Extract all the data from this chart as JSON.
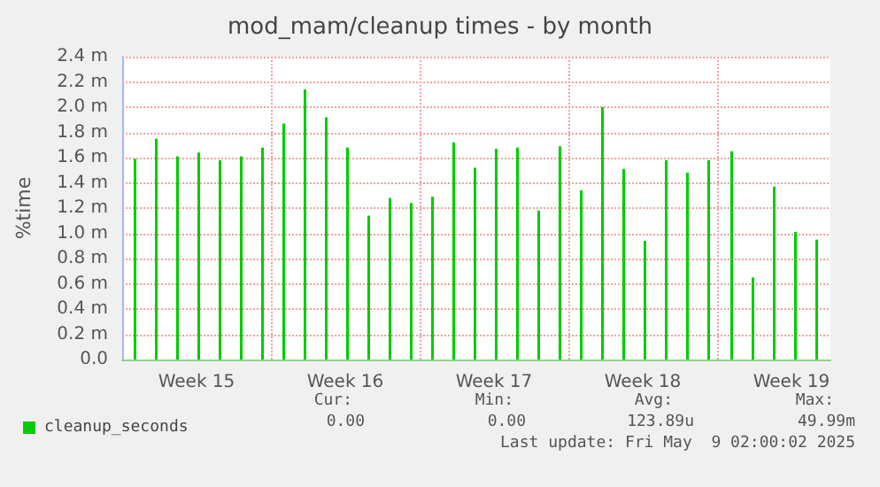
{
  "chart_data": {
    "type": "bar",
    "title": "mod_mam/cleanup times - by month",
    "ylabel": "%time",
    "x": [
      "2025-04-07T14:30",
      "2025-04-08T14:30",
      "2025-04-09T14:30",
      "2025-04-10T14:30",
      "2025-04-11T14:30",
      "2025-04-12T14:30",
      "2025-04-13T14:30",
      "2025-04-14T14:30",
      "2025-04-15T14:30",
      "2025-04-16T14:30",
      "2025-04-17T14:30",
      "2025-04-18T14:30",
      "2025-04-19T14:30",
      "2025-04-20T14:30",
      "2025-04-21T14:30",
      "2025-04-22T14:30",
      "2025-04-23T14:30",
      "2025-04-24T14:30",
      "2025-04-25T14:30",
      "2025-04-26T14:30",
      "2025-04-27T14:30",
      "2025-04-28T14:30",
      "2025-04-29T14:30",
      "2025-04-30T14:30",
      "2025-05-01T14:30",
      "2025-05-02T14:30",
      "2025-05-03T14:30",
      "2025-05-04T14:30",
      "2025-05-05T16:30",
      "2025-05-06T16:30",
      "2025-05-07T16:30",
      "2025-05-08T16:30",
      "2025-05-09T16:30"
    ],
    "series": [
      {
        "name": "cleanup_seconds",
        "color": "#00cc00",
        "values": [
          1.59,
          1.75,
          1.61,
          1.64,
          1.58,
          1.61,
          1.68,
          1.87,
          2.14,
          1.92,
          1.68,
          1.14,
          1.28,
          1.24,
          1.29,
          1.72,
          1.52,
          1.67,
          1.68,
          1.18,
          1.69,
          1.34,
          2.0,
          1.51,
          0.94,
          1.58,
          1.48,
          1.58,
          1.65,
          0.65,
          1.37,
          1.01,
          0.95
        ]
      }
    ],
    "xlim": [
      "2025-04-07T00:00",
      "2025-05-10T08:00"
    ],
    "xticks": [
      {
        "value": "2025-04-10T12:00",
        "label": "Week 15"
      },
      {
        "value": "2025-04-14T00:00",
        "label": null
      },
      {
        "value": "2025-04-17T12:00",
        "label": "Week 16"
      },
      {
        "value": "2025-04-21T00:00",
        "label": null
      },
      {
        "value": "2025-04-24T12:00",
        "label": "Week 17"
      },
      {
        "value": "2025-04-28T00:00",
        "label": null
      },
      {
        "value": "2025-05-01T12:00",
        "label": "Week 18"
      },
      {
        "value": "2025-05-05T00:00",
        "label": null
      },
      {
        "value": "2025-05-08T12:00",
        "label": "Week 19"
      }
    ],
    "ylim": [
      0,
      2.4
    ],
    "yticks": [
      {
        "value": 0,
        "label": "0.0"
      },
      {
        "value": 0.2,
        "label": "0.2 m"
      },
      {
        "value": 0.4,
        "label": "0.4 m"
      },
      {
        "value": 0.6,
        "label": "0.6 m"
      },
      {
        "value": 0.8,
        "label": "0.8 m"
      },
      {
        "value": 1,
        "label": "1.0 m"
      },
      {
        "value": 1.2,
        "label": "1.2 m"
      },
      {
        "value": 1.4,
        "label": "1.4 m"
      },
      {
        "value": 1.6,
        "label": "1.6 m"
      },
      {
        "value": 1.8,
        "label": "1.8 m"
      },
      {
        "value": 2,
        "label": "2.0 m"
      },
      {
        "value": 2.2,
        "label": "2.2 m"
      },
      {
        "value": 2.4,
        "label": "2.4 m"
      }
    ],
    "grid": true,
    "legend": "bottom left",
    "annotations": [
      "Cur:",
      "0.00",
      "Min:",
      "0.00",
      "Avg:",
      "123.89u",
      "Max:",
      "49.99m",
      "Last update: Fri May  9 02:00:02 2025"
    ]
  }
}
